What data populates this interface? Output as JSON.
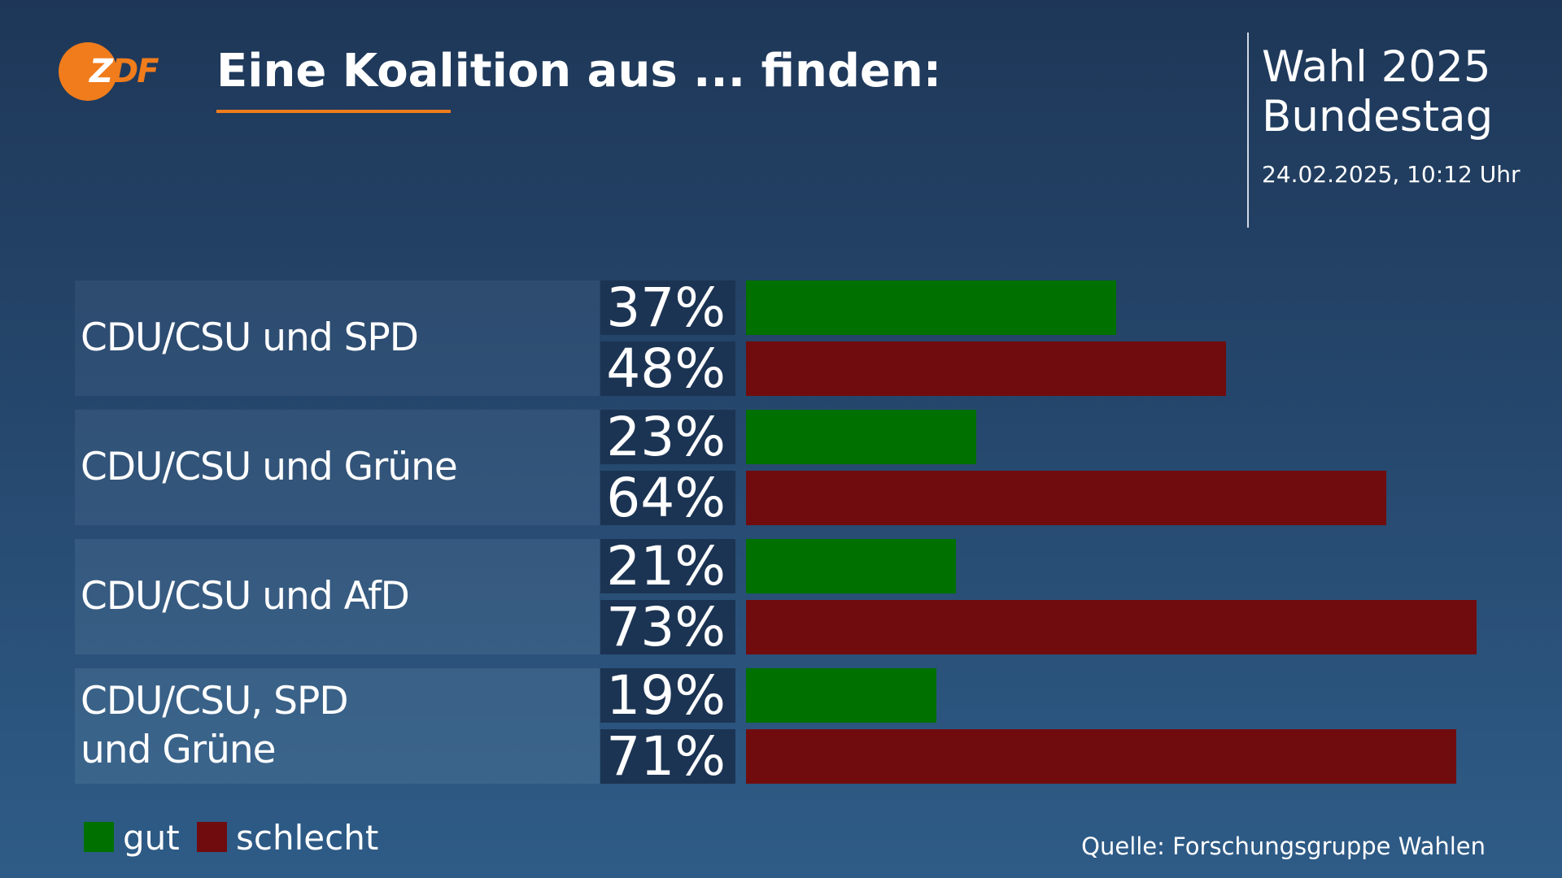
{
  "chart_data": {
    "type": "bar",
    "orientation": "horizontal",
    "logo": "ZDF",
    "title": "Eine Koalition aus ... finden:",
    "header": [
      "Wahl 2025",
      "Bundestag"
    ],
    "timestamp": "24.02.2025, 10:12 Uhr",
    "source": "Quelle: Forschungsgruppe Wahlen",
    "categories": [
      "CDU/CSU und SPD",
      "CDU/CSU und Grüne",
      "CDU/CSU und AfD",
      "CDU/CSU, SPD\nund Grüne"
    ],
    "series": [
      {
        "name": "gut",
        "color": "#007000",
        "values": [
          37,
          23,
          21,
          19
        ],
        "value_labels": [
          "37%",
          "23%",
          "21%",
          "19%"
        ]
      },
      {
        "name": "schlecht",
        "color": "#700c0e",
        "values": [
          48,
          64,
          73,
          71
        ],
        "value_labels": [
          "48%",
          "64%",
          "73%",
          "71%"
        ]
      }
    ]
  }
}
